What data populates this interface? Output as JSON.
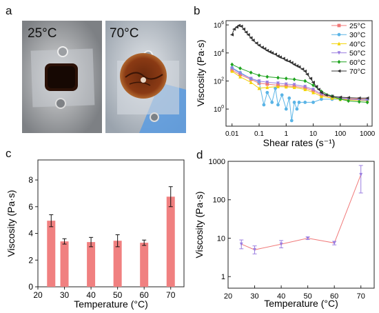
{
  "panels": {
    "a": {
      "letter": "a",
      "photos": [
        {
          "label": "25°C",
          "bg": "#a9acb0",
          "sample": "#2b1107"
        },
        {
          "label": "70°C",
          "bg": "#bcc3cc",
          "sample": "#7a3212"
        }
      ]
    },
    "b": {
      "letter": "b"
    },
    "c": {
      "letter": "c"
    },
    "d": {
      "letter": "d"
    }
  },
  "chart_data": [
    {
      "id": "b",
      "type": "line",
      "xlabel": "Shear rates (s⁻¹)",
      "ylabel": "Viscosity (Pa·s)",
      "xscale": "log",
      "yscale": "log",
      "xlim": [
        0.006,
        1500
      ],
      "ylim": [
        0.06,
        2000000
      ],
      "xticks": [
        {
          "v": 0.01,
          "label": "0.01"
        },
        {
          "v": 0.1,
          "label": "0.1"
        },
        {
          "v": 1,
          "label": "1"
        },
        {
          "v": 10,
          "label": "10"
        },
        {
          "v": 100,
          "label": "100"
        },
        {
          "v": 1000,
          "label": "1000"
        }
      ],
      "yticks": [
        {
          "v": 1,
          "base": "10",
          "exp": "0"
        },
        {
          "v": 100,
          "base": "10",
          "exp": "2"
        },
        {
          "v": 10000,
          "base": "10",
          "exp": "4"
        },
        {
          "v": 1000000,
          "base": "10",
          "exp": "6"
        }
      ],
      "legend_position": "top-right",
      "series": [
        {
          "name": "25°C",
          "color": "#f07878",
          "marker": "square",
          "x": [
            0.01,
            0.02,
            0.05,
            0.1,
            0.2,
            0.5,
            1,
            2,
            5,
            10,
            20,
            50,
            100,
            200,
            500,
            1000
          ],
          "y": [
            600,
            280,
            130,
            70,
            60,
            50,
            45,
            42,
            32,
            20,
            10,
            7,
            6,
            5.5,
            5.2,
            5
          ]
        },
        {
          "name": "30°C",
          "color": "#5ab4e6",
          "marker": "circle",
          "x": [
            0.01,
            0.02,
            0.05,
            0.1,
            0.15,
            0.2,
            0.3,
            0.4,
            0.5,
            0.7,
            1,
            1.3,
            1.6,
            2,
            2.5,
            3,
            5,
            10,
            20,
            50,
            100,
            200,
            500,
            1000
          ],
          "y": [
            900,
            400,
            150,
            90,
            2,
            15,
            3,
            30,
            2,
            10,
            1,
            6,
            0.15,
            3,
            1,
            3,
            3,
            3,
            5,
            5,
            5,
            5,
            4.5,
            4.5
          ]
        },
        {
          "name": "40°C",
          "color": "#f2d200",
          "marker": "triangle-up",
          "x": [
            0.01,
            0.02,
            0.05,
            0.1,
            0.2,
            0.5,
            1,
            2,
            5,
            10,
            20,
            50,
            100,
            200,
            500,
            1000
          ],
          "y": [
            500,
            200,
            80,
            30,
            35,
            40,
            38,
            35,
            25,
            15,
            8,
            6,
            5,
            4.5,
            4.2,
            4
          ]
        },
        {
          "name": "50°C",
          "color": "#9a7de0",
          "marker": "triangle-down",
          "x": [
            0.01,
            0.02,
            0.05,
            0.1,
            0.2,
            0.5,
            1,
            2,
            5,
            10,
            20,
            50,
            100,
            200,
            500,
            1000
          ],
          "y": [
            800,
            350,
            150,
            100,
            80,
            70,
            60,
            55,
            40,
            25,
            12,
            8,
            6,
            5,
            4.5,
            4.2
          ]
        },
        {
          "name": "60°C",
          "color": "#1ea31e",
          "marker": "diamond",
          "x": [
            0.01,
            0.02,
            0.05,
            0.1,
            0.2,
            0.5,
            1,
            2,
            5,
            10,
            20,
            50,
            100,
            200,
            500,
            1000
          ],
          "y": [
            1500,
            800,
            400,
            250,
            200,
            170,
            150,
            130,
            100,
            50,
            18,
            8,
            5,
            3.8,
            3.3,
            3
          ]
        },
        {
          "name": "70°C",
          "color": "#333333",
          "marker": "triangle-left",
          "x": [
            0.01,
            0.012,
            0.015,
            0.018,
            0.022,
            0.027,
            0.033,
            0.04,
            0.05,
            0.06,
            0.08,
            0.1,
            0.13,
            0.16,
            0.2,
            0.25,
            0.3,
            0.4,
            0.5,
            0.6,
            0.8,
            1,
            1.3,
            1.6,
            2,
            2.5,
            3,
            4,
            5,
            6,
            8,
            10,
            13,
            16,
            20,
            30,
            50,
            100,
            200,
            500,
            1000
          ],
          "y": [
            200000,
            500000,
            700000,
            900000,
            800000,
            500000,
            300000,
            200000,
            120000,
            80000,
            50000,
            35000,
            25000,
            20000,
            15000,
            12000,
            10000,
            8000,
            6000,
            5000,
            4000,
            3000,
            2500,
            2000,
            1500,
            1200,
            1000,
            700,
            500,
            300,
            150,
            80,
            40,
            25,
            15,
            10,
            8,
            7,
            6.5,
            6,
            6
          ]
        }
      ]
    },
    {
      "id": "c",
      "type": "bar",
      "xlabel": "Temperature (°C)",
      "ylabel": "Viscosity (Pa·s)",
      "xlim": [
        20,
        75
      ],
      "ylim": [
        0,
        9.5
      ],
      "xticks": [
        20,
        30,
        40,
        50,
        60,
        70
      ],
      "yticks": [
        0,
        2,
        4,
        6,
        8
      ],
      "bar_color": "#f08080",
      "x": [
        25,
        30,
        40,
        50,
        60,
        70
      ],
      "values": [
        4.95,
        3.4,
        3.35,
        3.45,
        3.3,
        6.75
      ],
      "errors": [
        0.45,
        0.2,
        0.35,
        0.45,
        0.2,
        0.75
      ]
    },
    {
      "id": "d",
      "type": "line",
      "xlabel": "Temperature (°C)",
      "ylabel": "Viscosity (Pa·s)",
      "yscale": "log",
      "xlim": [
        20,
        75
      ],
      "ylim": [
        0.5,
        1000
      ],
      "xticks": [
        20,
        30,
        40,
        50,
        60,
        70
      ],
      "yticks": [
        {
          "v": 1,
          "label": "1"
        },
        {
          "v": 10,
          "label": "10"
        },
        {
          "v": 100,
          "label": "100"
        },
        {
          "v": 1000,
          "label": "1000"
        }
      ],
      "line_color": "#f07878",
      "marker_color": "#9a7de0",
      "x": [
        25,
        30,
        40,
        50,
        60,
        70
      ],
      "values": [
        7,
        5,
        7,
        10,
        7.5,
        450
      ],
      "err_low": [
        5.3,
        3.9,
        5.6,
        9.2,
        6.7,
        150
      ],
      "err_high": [
        9,
        6.3,
        8.7,
        10.8,
        8.3,
        780
      ]
    }
  ]
}
